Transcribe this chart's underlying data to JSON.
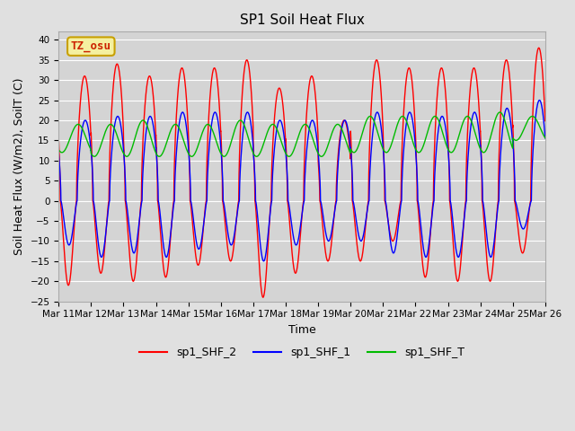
{
  "title": "SP1 Soil Heat Flux",
  "xlabel": "Time",
  "ylabel": "Soil Heat Flux (W/m2), SoilT (C)",
  "ylim": [
    -25,
    42
  ],
  "yticks": [
    -25,
    -20,
    -15,
    -10,
    -5,
    0,
    5,
    10,
    15,
    20,
    25,
    30,
    35,
    40
  ],
  "fig_bg_color": "#e0e0e0",
  "plot_bg_color": "#d4d4d4",
  "tz_label": "TZ_osu",
  "tz_box_facecolor": "#f5f0a0",
  "tz_box_edgecolor": "#c8a000",
  "tz_text_color": "#cc2200",
  "legend_entries": [
    "sp1_SHF_2",
    "sp1_SHF_1",
    "sp1_SHF_T"
  ],
  "line_colors": [
    "#ff0000",
    "#0000ff",
    "#00bb00"
  ],
  "x_tick_labels": [
    "Mar 11",
    "Mar 12",
    "Mar 13",
    "Mar 14",
    "Mar 15",
    "Mar 16",
    "Mar 17",
    "Mar 18",
    "Mar 19",
    "Mar 20",
    "Mar 21",
    "Mar 22",
    "Mar 23",
    "Mar 24",
    "Mar 25",
    "Mar 26"
  ],
  "shf2_day_peaks": [
    31,
    34,
    31,
    33,
    33,
    35,
    28,
    31,
    20,
    35,
    33,
    33,
    33,
    35,
    38
  ],
  "shf2_day_troughs": [
    -21,
    -18,
    -20,
    -19,
    -16,
    -15,
    -24,
    -18,
    -15,
    -15,
    -10,
    -19,
    -20,
    -20,
    -13
  ],
  "shf1_day_peaks": [
    20,
    21,
    21,
    22,
    22,
    22,
    20,
    20,
    20,
    22,
    22,
    21,
    22,
    23,
    25
  ],
  "shf1_day_troughs": [
    -11,
    -14,
    -13,
    -14,
    -12,
    -11,
    -15,
    -11,
    -10,
    -10,
    -13,
    -14,
    -14,
    -14,
    -7
  ],
  "shft_day_min": [
    12,
    11,
    11,
    11,
    11,
    11,
    11,
    11,
    11,
    12,
    12,
    12,
    12,
    12,
    15
  ],
  "shft_day_max": [
    19,
    19,
    20,
    19,
    19,
    20,
    19,
    19,
    19,
    21,
    21,
    21,
    21,
    22,
    21
  ]
}
